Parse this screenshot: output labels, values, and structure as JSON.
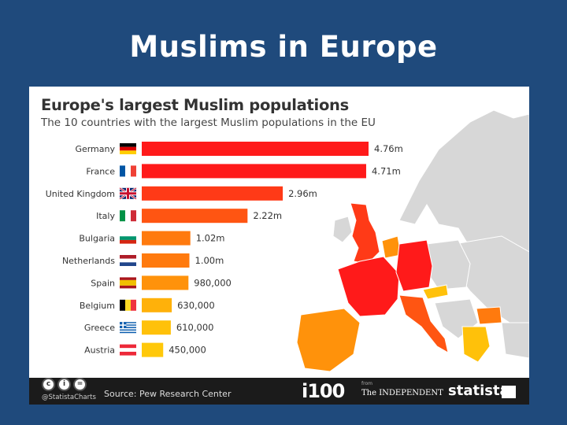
{
  "slide": {
    "title": "Muslims in Europe"
  },
  "chart_data": {
    "type": "bar",
    "orientation": "horizontal",
    "title": "Europe's largest Muslim populations",
    "subtitle": "The 10 countries with the largest Muslim populations in the EU",
    "categories": [
      "Germany",
      "France",
      "United Kingdom",
      "Italy",
      "Bulgaria",
      "Netherlands",
      "Spain",
      "Belgium",
      "Greece",
      "Austria"
    ],
    "values": [
      4760000,
      4710000,
      2960000,
      2220000,
      1020000,
      1000000,
      980000,
      630000,
      610000,
      450000
    ],
    "data_labels": [
      "4.76m",
      "4.71m",
      "2.96m",
      "2.22m",
      "1.02m",
      "1.00m",
      "980,000",
      "630,000",
      "610,000",
      "450,000"
    ],
    "flags": [
      "germany-flag",
      "france-flag",
      "uk-flag",
      "italy-flag",
      "bulgaria-flag",
      "netherlands-flag",
      "spain-flag",
      "belgium-flag",
      "greece-flag",
      "austria-flag"
    ],
    "bar_colors": [
      "#ff1a1a",
      "#ff1a1a",
      "#ff3a17",
      "#ff5512",
      "#ff7a0e",
      "#ff7a0e",
      "#ff920b",
      "#ffb10a",
      "#ffc10a",
      "#ffc80a"
    ],
    "xlim": [
      0,
      4760000
    ],
    "grid": false,
    "legend": "none",
    "background_map": "choropleth map of Europe, shaded by Muslim population"
  },
  "footer": {
    "handle": "@StatistaCharts",
    "source": "Source: Pew Research Center",
    "i100_logo": "i100",
    "from_label": "from",
    "independent_logo": "The INDEPENDENT",
    "statista_logo": "statista",
    "license_icons": [
      "cc-icon",
      "by-icon",
      "nd-icon"
    ]
  },
  "colors": {
    "slide_background": "#1f4a7c",
    "panel_background": "#ffffff",
    "footer_background": "#1b1b1b",
    "map_land": "#d7d7d7",
    "map_highlight_high": "#ff1a1a",
    "map_highlight_mid": "#ff7a0e",
    "map_highlight_low": "#ffc10a"
  }
}
